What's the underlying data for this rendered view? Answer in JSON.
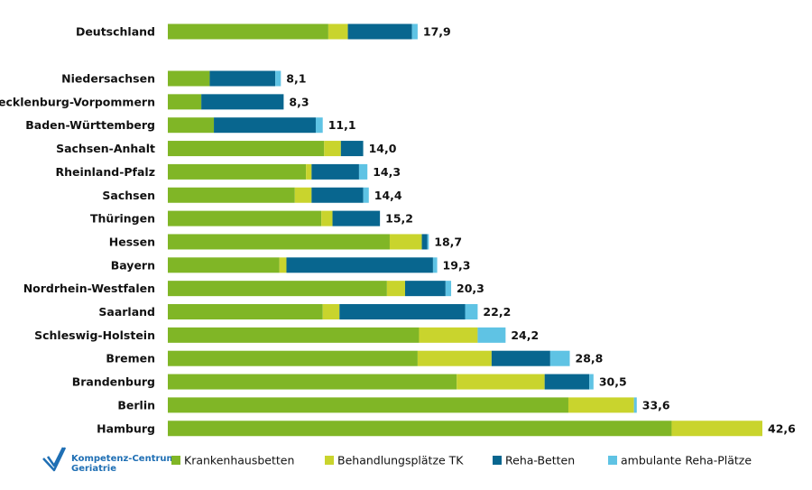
{
  "chart_data": {
    "type": "bar",
    "orientation": "horizontal",
    "stacked": true,
    "categories": [
      "Deutschland",
      "Niedersachsen",
      "Mecklenburg-Vorpommern",
      "Baden-Württemberg",
      "Sachsen-Anhalt",
      "Rheinland-Pfalz",
      "Sachsen",
      "Thüringen",
      "Hessen",
      "Bayern",
      "Nordrhein-Westfalen",
      "Saarland",
      "Schleswig-Holstein",
      "Bremen",
      "Brandenburg",
      "Berlin",
      "Hamburg"
    ],
    "totals": [
      "17,9",
      "8,1",
      "8,3",
      "11,1",
      "14,0",
      "14,3",
      "14,4",
      "15,2",
      "18,7",
      "19,3",
      "20,3",
      "22,2",
      "24,2",
      "28,8",
      "30,5",
      "33,6",
      "42,6"
    ],
    "series": [
      {
        "name": "Krankenhausbetten",
        "color": "#80b626",
        "values": [
          11.5,
          3.0,
          2.4,
          3.3,
          11.2,
          9.9,
          9.1,
          11.0,
          15.9,
          8.0,
          15.7,
          11.1,
          18.0,
          17.9,
          20.7,
          28.7,
          36.1
        ]
      },
      {
        "name": "Behandlungsplätze TK",
        "color": "#c9d42d",
        "values": [
          1.4,
          0,
          0,
          0,
          1.2,
          0.4,
          1.2,
          0.8,
          2.3,
          0.5,
          1.3,
          1.2,
          4.2,
          5.3,
          6.3,
          4.7,
          6.5
        ]
      },
      {
        "name": "Reha-Betten",
        "color": "#08668f",
        "values": [
          4.6,
          4.7,
          5.9,
          7.3,
          1.6,
          3.4,
          3.7,
          3.4,
          0.4,
          10.5,
          2.9,
          9.0,
          0,
          4.2,
          3.2,
          0,
          0
        ]
      },
      {
        "name": "ambulante Reha-Plätze",
        "color": "#5fc3e4",
        "values": [
          0.4,
          0.4,
          0,
          0.5,
          0,
          0.6,
          0.4,
          0,
          0.1,
          0.3,
          0.4,
          0.9,
          2.0,
          1.4,
          0.3,
          0.2,
          0
        ]
      }
    ],
    "xlim": [
      0,
      42.6
    ],
    "grid": false,
    "legend": "bottom"
  },
  "logo": {
    "line1": "Kompetenz-Centrum",
    "line2": "Geriatrie"
  }
}
